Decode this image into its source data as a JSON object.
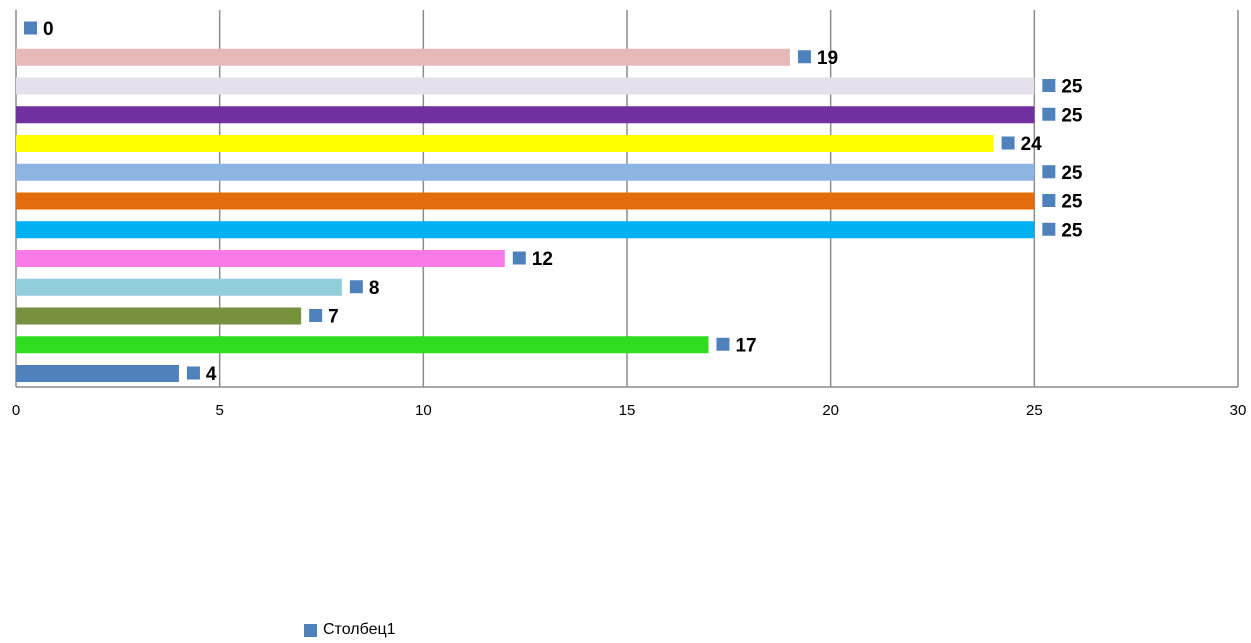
{
  "chart_data": {
    "type": "bar",
    "orientation": "horizontal",
    "title": "",
    "xlabel": "",
    "ylabel": "",
    "xlim": [
      0,
      30
    ],
    "x_ticks": [
      "0",
      "5",
      "10",
      "15",
      "20",
      "25",
      "30"
    ],
    "grid": "vertical",
    "legend_position": "bottom",
    "series": [
      {
        "name": "Столбец1",
        "color": "#4f81bd",
        "values": [
          4,
          17,
          7,
          8,
          12,
          25,
          25,
          25,
          24,
          25,
          25,
          19,
          0
        ],
        "labels": [
          "4",
          "17",
          "7",
          "8",
          "12",
          "25",
          "25",
          "25",
          "24",
          "25",
          "25",
          "19",
          "0"
        ],
        "bar_colors": [
          "#4f81bd",
          "#2fdc1f",
          "#76923c",
          "#92cddc",
          "#fb7ae8",
          "#00b0f0",
          "#e36c0a",
          "#8eb4e3",
          "#ffff00",
          "#7030a0",
          "#e6e0ec",
          "#e6b9b8",
          "#e6b9b8"
        ]
      }
    ]
  },
  "legend": {
    "label": "Столбец1",
    "color": "#4f81bd"
  }
}
